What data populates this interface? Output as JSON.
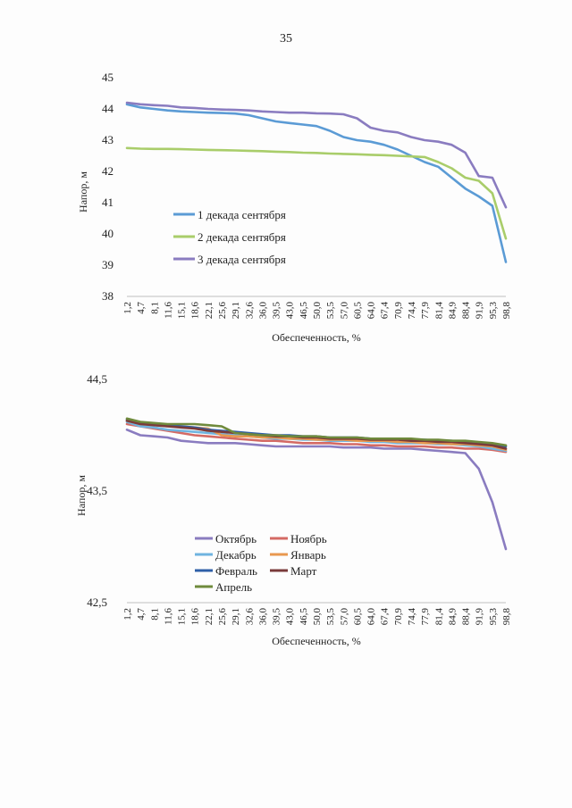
{
  "page": {
    "number": "35"
  },
  "chart_data": [
    {
      "type": "line",
      "title": "",
      "xlabel": "Обеспеченность, %",
      "ylabel": "Напор, м",
      "ylim": [
        38,
        45
      ],
      "yticks": [
        "38",
        "39",
        "40",
        "41",
        "42",
        "43",
        "44",
        "45"
      ],
      "xticks": [
        "1,2",
        "4,7",
        "8,1",
        "11,6",
        "15,1",
        "18,6",
        "22,1",
        "25,6",
        "29,1",
        "32,6",
        "36,0",
        "39,5",
        "43,0",
        "46,5",
        "50,0",
        "53,5",
        "57,0",
        "60,5",
        "64,0",
        "67,4",
        "70,9",
        "74,4",
        "77,9",
        "81,4",
        "84,9",
        "88,4",
        "91,9",
        "95,3",
        "98,8"
      ],
      "x": [
        1.2,
        4.7,
        8.1,
        11.6,
        15.1,
        18.6,
        22.1,
        25.6,
        29.1,
        32.6,
        36.0,
        39.5,
        43.0,
        46.5,
        50.0,
        53.5,
        57.0,
        60.5,
        64.0,
        67.4,
        70.9,
        74.4,
        77.9,
        81.4,
        84.9,
        88.4,
        91.9,
        95.3,
        98.8
      ],
      "legend_position": "lower-left",
      "series": [
        {
          "name": "1 декада сентября",
          "color": "#5b9bd5",
          "values": [
            44.15,
            44.05,
            44.0,
            43.95,
            43.92,
            43.9,
            43.88,
            43.87,
            43.85,
            43.8,
            43.7,
            43.6,
            43.55,
            43.5,
            43.45,
            43.3,
            43.1,
            43.0,
            42.95,
            42.85,
            42.7,
            42.5,
            42.3,
            42.15,
            41.8,
            41.45,
            41.2,
            40.9,
            39.1
          ]
        },
        {
          "name": "2 декада сентября",
          "color": "#a9cd6a",
          "values": [
            42.75,
            42.73,
            42.72,
            42.72,
            42.71,
            42.7,
            42.69,
            42.68,
            42.67,
            42.66,
            42.65,
            42.63,
            42.62,
            42.6,
            42.59,
            42.57,
            42.56,
            42.55,
            42.53,
            42.52,
            42.5,
            42.48,
            42.46,
            42.3,
            42.1,
            41.8,
            41.7,
            41.3,
            39.85
          ]
        },
        {
          "name": "3 декада сентября",
          "color": "#8a7cc0",
          "values": [
            44.2,
            44.15,
            44.12,
            44.1,
            44.05,
            44.03,
            44.0,
            43.98,
            43.97,
            43.95,
            43.92,
            43.9,
            43.88,
            43.88,
            43.86,
            43.85,
            43.83,
            43.7,
            43.4,
            43.3,
            43.25,
            43.1,
            43.0,
            42.95,
            42.85,
            42.6,
            41.85,
            41.8,
            40.85
          ]
        }
      ]
    },
    {
      "type": "line",
      "title": "",
      "xlabel": "Обеспеченность, %",
      "ylabel": "Напор, м",
      "ylim": [
        42.5,
        44.5
      ],
      "yticks": [
        "42,5",
        "43,5",
        "44,5"
      ],
      "xticks": [
        "1,2",
        "4,7",
        "8,1",
        "11,6",
        "15,1",
        "18,6",
        "22,1",
        "25,6",
        "29,1",
        "32,6",
        "36,0",
        "39,5",
        "43,0",
        "46,5",
        "50,0",
        "53,5",
        "57,0",
        "60,5",
        "64,0",
        "67,4",
        "70,9",
        "74,4",
        "77,9",
        "81,4",
        "84,9",
        "88,4",
        "91,9",
        "95,3",
        "98,8"
      ],
      "x": [
        1.2,
        4.7,
        8.1,
        11.6,
        15.1,
        18.6,
        22.1,
        25.6,
        29.1,
        32.6,
        36.0,
        39.5,
        43.0,
        46.5,
        50.0,
        53.5,
        57.0,
        60.5,
        64.0,
        67.4,
        70.9,
        74.4,
        77.9,
        81.4,
        84.9,
        88.4,
        91.9,
        95.3,
        98.8
      ],
      "legend_position": "bottom-center",
      "series": [
        {
          "name": "Октябрь",
          "color": "#8a7cc0",
          "values": [
            44.05,
            44.0,
            43.99,
            43.98,
            43.95,
            43.94,
            43.93,
            43.93,
            43.93,
            43.92,
            43.91,
            43.9,
            43.9,
            43.9,
            43.9,
            43.9,
            43.89,
            43.89,
            43.89,
            43.88,
            43.88,
            43.88,
            43.87,
            43.86,
            43.85,
            43.84,
            43.7,
            43.4,
            42.98
          ]
        },
        {
          "name": "Ноябрь",
          "color": "#d46a64",
          "values": [
            44.1,
            44.08,
            44.06,
            44.04,
            44.02,
            44.0,
            43.99,
            43.98,
            43.97,
            43.96,
            43.95,
            43.95,
            43.94,
            43.93,
            43.93,
            43.93,
            43.92,
            43.92,
            43.91,
            43.91,
            43.9,
            43.9,
            43.9,
            43.89,
            43.89,
            43.88,
            43.88,
            43.87,
            43.85
          ]
        },
        {
          "name": "Декабрь",
          "color": "#6fb4e0",
          "values": [
            44.12,
            44.08,
            44.07,
            44.05,
            44.04,
            44.03,
            44.02,
            44.01,
            44.0,
            43.99,
            43.98,
            43.97,
            43.97,
            43.96,
            43.96,
            43.95,
            43.95,
            43.95,
            43.94,
            43.94,
            43.93,
            43.93,
            43.93,
            43.92,
            43.92,
            43.91,
            43.9,
            43.88,
            43.86
          ]
        },
        {
          "name": "Январь",
          "color": "#e8984f",
          "values": [
            44.13,
            44.1,
            44.09,
            44.08,
            44.08,
            44.07,
            44.06,
            44.0,
            43.99,
            43.99,
            43.98,
            43.98,
            43.97,
            43.97,
            43.96,
            43.96,
            43.96,
            43.95,
            43.95,
            43.95,
            43.94,
            43.94,
            43.93,
            43.93,
            43.92,
            43.92,
            43.91,
            43.9,
            43.87
          ]
        },
        {
          "name": "Февраль",
          "color": "#2f5fa8",
          "values": [
            44.14,
            44.11,
            44.1,
            44.09,
            44.08,
            44.07,
            44.05,
            44.04,
            44.03,
            44.02,
            44.01,
            44.0,
            44.0,
            43.99,
            43.99,
            43.98,
            43.98,
            43.98,
            43.97,
            43.97,
            43.97,
            43.96,
            43.96,
            43.95,
            43.95,
            43.94,
            43.93,
            43.92,
            43.9
          ]
        },
        {
          "name": "Март",
          "color": "#7a3b3b",
          "values": [
            44.13,
            44.1,
            44.09,
            44.08,
            44.07,
            44.06,
            44.04,
            44.03,
            44.02,
            44.01,
            44.0,
            43.99,
            43.99,
            43.98,
            43.98,
            43.97,
            43.97,
            43.97,
            43.96,
            43.96,
            43.96,
            43.95,
            43.95,
            43.94,
            43.94,
            43.93,
            43.92,
            43.91,
            43.88
          ]
        },
        {
          "name": "Апрель",
          "color": "#6f8a3c",
          "values": [
            44.15,
            44.12,
            44.11,
            44.1,
            44.1,
            44.1,
            44.09,
            44.08,
            44.02,
            44.01,
            44.0,
            44.0,
            43.99,
            43.99,
            43.99,
            43.98,
            43.98,
            43.98,
            43.97,
            43.97,
            43.97,
            43.97,
            43.96,
            43.96,
            43.95,
            43.95,
            43.94,
            43.93,
            43.91
          ]
        }
      ]
    }
  ]
}
